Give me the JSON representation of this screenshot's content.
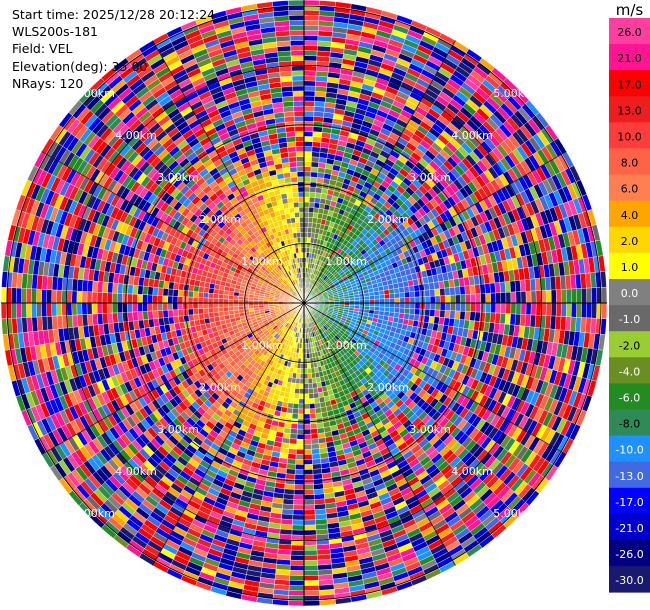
{
  "info": {
    "start_time": "Start time: 2025/12/28 20:12:24",
    "instrument": "WLS200s-181",
    "field": "Field: VEL",
    "elevation": "Elevation(deg): 35.00",
    "nrays": "NRays: 120"
  },
  "chart_data": {
    "type": "heatmap",
    "projection": "polar-ppi",
    "title": "",
    "rays": 120,
    "range_rings_km": [
      1.0,
      2.0,
      3.0,
      4.0,
      5.0
    ],
    "ring_labels": [
      "1.00km",
      "2.00km",
      "3.00km",
      "4.00km",
      "5.00km"
    ],
    "max_range_km": 5.1,
    "colorbar": {
      "unit": "m/s",
      "ticks": [
        "26.0",
        "21.0",
        "17.0",
        "13.0",
        "10.0",
        "8.0",
        "6.0",
        "4.0",
        "2.0",
        "1.0",
        "0.0",
        "-1.0",
        "-2.0",
        "-4.0",
        "-6.0",
        "-8.0",
        "-10.0",
        "-13.0",
        "-17.0",
        "-21.0",
        "-26.0",
        "-30.0"
      ],
      "colors": [
        "#ff3ea0",
        "#ff1493",
        "#ff0000",
        "#ee1e1e",
        "#ff3c3c",
        "#ff6347",
        "#ff7f50",
        "#ffa500",
        "#ffd700",
        "#ffff00",
        "#808080",
        "#696969",
        "#9acd32",
        "#6b8e23",
        "#228b22",
        "#2e8b57",
        "#1e90ff",
        "#4169e1",
        "#0000ff",
        "#0000cd",
        "#000080",
        "#191970"
      ]
    },
    "wind_field": {
      "towards_radar_from": "west",
      "colors_towards": "green-blue",
      "colors_away": "yellow-red"
    }
  }
}
